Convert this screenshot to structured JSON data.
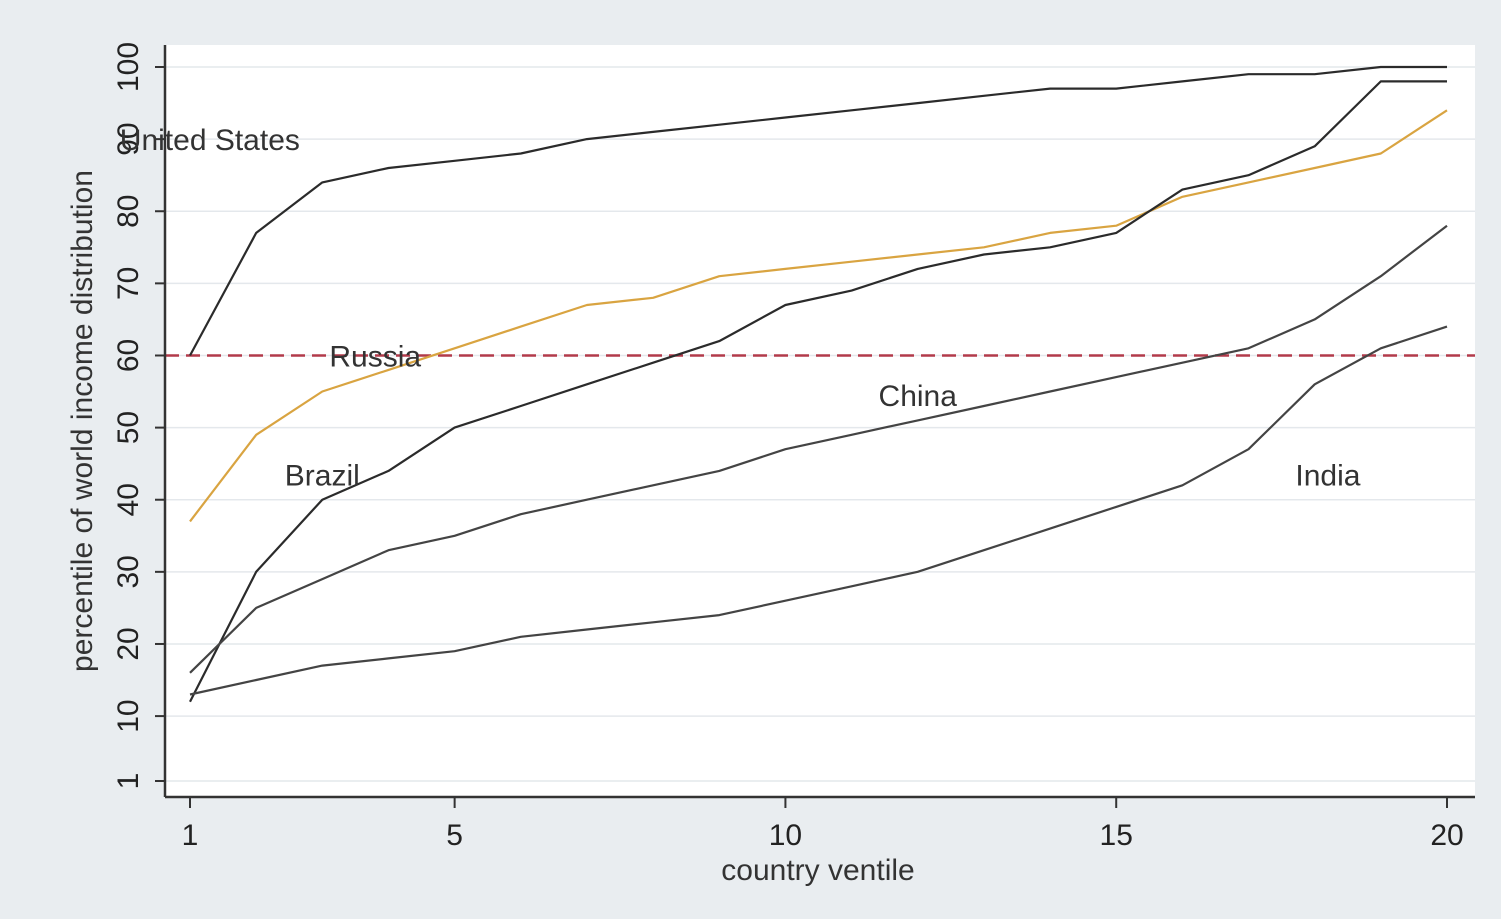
{
  "chart_data": {
    "type": "line",
    "title": "",
    "xlabel": "country ventile",
    "ylabel": "percentile of world income distribution",
    "xlim": [
      1,
      20
    ],
    "ylim": [
      1,
      100
    ],
    "x_ticks": [
      1,
      5,
      10,
      15,
      20
    ],
    "y_ticks": [
      1,
      10,
      20,
      30,
      40,
      50,
      60,
      70,
      80,
      90,
      100
    ],
    "grid": true,
    "reference_line": {
      "y": 60,
      "style": "dashed",
      "color": "#b23a4a"
    },
    "x": [
      1,
      2,
      3,
      4,
      5,
      6,
      7,
      8,
      9,
      10,
      11,
      12,
      13,
      14,
      15,
      16,
      17,
      18,
      19,
      20
    ],
    "series": [
      {
        "name": "United States",
        "color": "#2b2b2b",
        "values": [
          60,
          77,
          84,
          86,
          87,
          88,
          90,
          91,
          92,
          93,
          94,
          95,
          96,
          97,
          97,
          98,
          99,
          99,
          100,
          100
        ]
      },
      {
        "name": "Russia",
        "color": "#d9a441",
        "values": [
          37,
          49,
          55,
          58,
          61,
          64,
          67,
          68,
          71,
          72,
          73,
          74,
          75,
          77,
          78,
          82,
          84,
          86,
          88,
          94
        ]
      },
      {
        "name": "Brazil",
        "color": "#2b2b2b",
        "values": [
          12,
          30,
          40,
          44,
          50,
          53,
          56,
          59,
          62,
          67,
          69,
          72,
          74,
          75,
          77,
          83,
          85,
          89,
          98,
          98
        ]
      },
      {
        "name": "China",
        "color": "#444444",
        "values": [
          16,
          25,
          29,
          33,
          35,
          38,
          40,
          42,
          44,
          47,
          49,
          51,
          53,
          55,
          57,
          59,
          61,
          65,
          71,
          78
        ]
      },
      {
        "name": "India",
        "color": "#444444",
        "values": [
          13,
          15,
          17,
          18,
          19,
          21,
          22,
          23,
          24,
          26,
          28,
          30,
          33,
          36,
          39,
          42,
          47,
          56,
          61,
          64
        ]
      }
    ]
  }
}
